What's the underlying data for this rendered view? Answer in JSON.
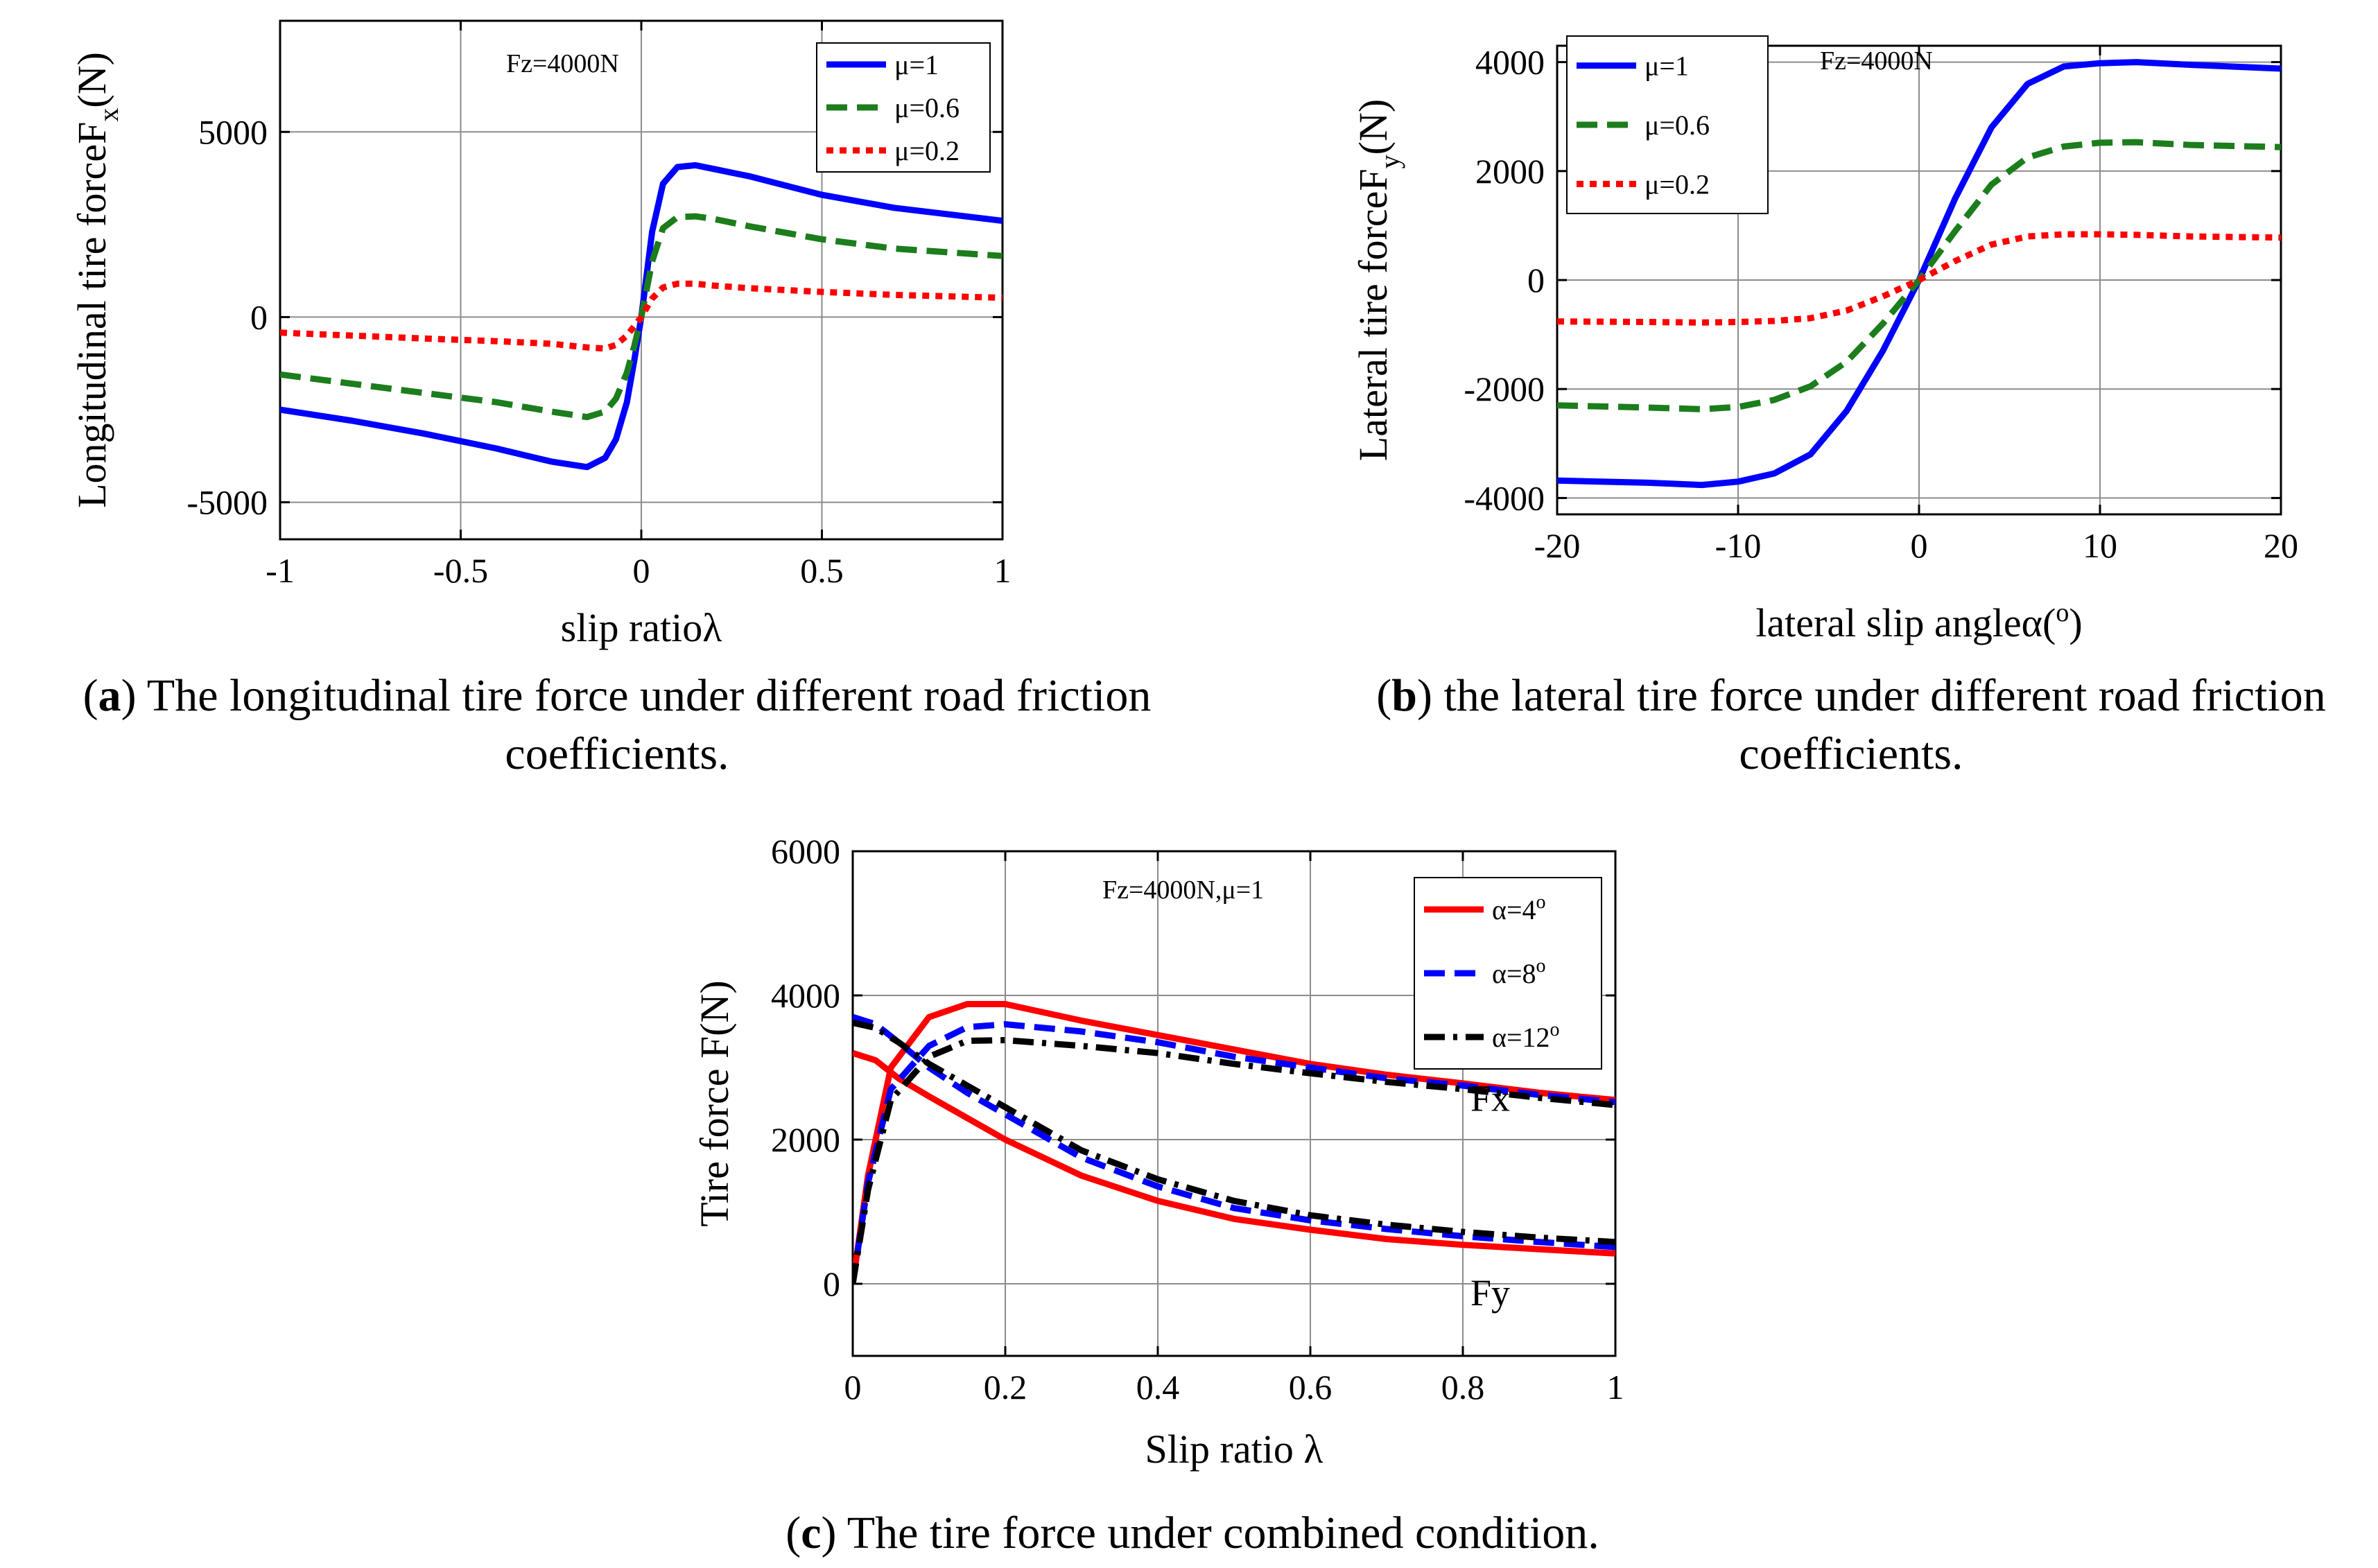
{
  "captions": {
    "a": {
      "letter": "a",
      "text": " The longitudinal tire force under different road friction coefficients."
    },
    "b": {
      "letter": "b",
      "text": " the lateral tire force under different road friction coefficients."
    },
    "c": {
      "letter": "c",
      "text": " The tire force under combined condition."
    }
  },
  "chart_data": [
    {
      "id": "a",
      "type": "line",
      "annotation": "Fz=4000N",
      "xlabel": "slip ratioλ",
      "ylabel_main": "Longitudinal tire forceF",
      "ylabel_sub": "x",
      "ylabel_tail": "(N)",
      "xlim": [
        -1,
        1
      ],
      "ylim": [
        -6000,
        8000
      ],
      "xticks": [
        -1,
        -0.5,
        0,
        0.5,
        1
      ],
      "xtick_labels": [
        "-1",
        "-0.5",
        "0",
        "0.5",
        "1"
      ],
      "yticks": [
        -5000,
        0,
        5000
      ],
      "ytick_labels": [
        "-5000",
        "0",
        "5000"
      ],
      "series": [
        {
          "name": "μ=1",
          "color": "#0000ff",
          "dash": "solid",
          "x": [
            -1,
            -0.8,
            -0.6,
            -0.4,
            -0.25,
            -0.15,
            -0.1,
            -0.07,
            -0.04,
            -0.02,
            0,
            0.03,
            0.06,
            0.1,
            0.15,
            0.2,
            0.3,
            0.5,
            0.7,
            1
          ],
          "y": [
            -2500,
            -2800,
            -3150,
            -3550,
            -3900,
            -4050,
            -3800,
            -3300,
            -2300,
            -1200,
            0,
            2300,
            3600,
            4050,
            4100,
            4000,
            3800,
            3300,
            2950,
            2600
          ]
        },
        {
          "name": "μ=0.6",
          "color": "#1c7d1c",
          "dash": "dash",
          "x": [
            -1,
            -0.8,
            -0.6,
            -0.4,
            -0.25,
            -0.15,
            -0.1,
            -0.07,
            -0.04,
            -0.02,
            0,
            0.03,
            0.06,
            0.1,
            0.15,
            0.2,
            0.3,
            0.5,
            0.7,
            1
          ],
          "y": [
            -1550,
            -1800,
            -2050,
            -2300,
            -2550,
            -2700,
            -2550,
            -2200,
            -1500,
            -800,
            0,
            1500,
            2400,
            2700,
            2720,
            2650,
            2450,
            2100,
            1850,
            1650
          ]
        },
        {
          "name": "μ=0.2",
          "color": "#ff0000",
          "dash": "dot",
          "x": [
            -1,
            -0.8,
            -0.6,
            -0.4,
            -0.25,
            -0.15,
            -0.1,
            -0.07,
            -0.04,
            -0.02,
            0,
            0.03,
            0.06,
            0.1,
            0.15,
            0.2,
            0.3,
            0.5,
            0.7,
            1
          ],
          "y": [
            -420,
            -500,
            -580,
            -650,
            -720,
            -820,
            -850,
            -750,
            -500,
            -250,
            0,
            500,
            800,
            900,
            900,
            850,
            780,
            680,
            600,
            520
          ]
        }
      ]
    },
    {
      "id": "b",
      "type": "line",
      "annotation": "Fz=4000N",
      "xlabel": "lateral slip angleα(",
      "xlabel_sup": "o",
      "xlabel_tail": ")",
      "ylabel_main": "Lateral tire forceF",
      "ylabel_sub": "y",
      "ylabel_tail": "(N)",
      "xlim": [
        -20,
        20
      ],
      "ylim": [
        -4300,
        4300
      ],
      "xticks": [
        -20,
        -10,
        0,
        10,
        20
      ],
      "xtick_labels": [
        "-20",
        "-10",
        "0",
        "10",
        "20"
      ],
      "yticks": [
        -4000,
        -2000,
        0,
        2000,
        4000
      ],
      "ytick_labels": [
        "-4000",
        "-2000",
        "0",
        "2000",
        "4000"
      ],
      "series": [
        {
          "name": "μ=1",
          "color": "#0000ff",
          "dash": "solid",
          "x": [
            -20,
            -15,
            -12,
            -10,
            -8,
            -6,
            -4,
            -2,
            0,
            2,
            4,
            6,
            8,
            10,
            12,
            15,
            20
          ],
          "y": [
            -3680,
            -3720,
            -3760,
            -3700,
            -3550,
            -3200,
            -2400,
            -1300,
            0,
            1500,
            2800,
            3600,
            3920,
            3980,
            4000,
            3950,
            3880
          ]
        },
        {
          "name": "μ=0.6",
          "color": "#1c7d1c",
          "dash": "dash",
          "x": [
            -20,
            -15,
            -12,
            -10,
            -8,
            -6,
            -4,
            -2,
            0,
            2,
            4,
            6,
            8,
            10,
            12,
            15,
            20
          ],
          "y": [
            -2300,
            -2340,
            -2370,
            -2330,
            -2200,
            -1950,
            -1500,
            -800,
            0,
            900,
            1750,
            2250,
            2450,
            2520,
            2530,
            2480,
            2440
          ]
        },
        {
          "name": "μ=0.2",
          "color": "#ff0000",
          "dash": "dot",
          "x": [
            -20,
            -15,
            -12,
            -10,
            -8,
            -6,
            -4,
            -2,
            0,
            2,
            4,
            6,
            8,
            10,
            12,
            15,
            20
          ],
          "y": [
            -760,
            -770,
            -780,
            -770,
            -750,
            -700,
            -560,
            -300,
            0,
            350,
            650,
            800,
            840,
            840,
            830,
            800,
            780
          ]
        }
      ]
    },
    {
      "id": "c",
      "type": "line",
      "annotation": "Fz=4000N,μ=1",
      "xlabel": "Slip ratio λ",
      "ylabel_main": "Tire force F(N)",
      "xlim": [
        0,
        1
      ],
      "ylim": [
        -1000,
        6000
      ],
      "xticks": [
        0,
        0.2,
        0.4,
        0.6,
        0.8,
        1
      ],
      "xtick_labels": [
        "0",
        "0.2",
        "0.4",
        "0.6",
        "0.8",
        "1"
      ],
      "yticks": [
        0,
        2000,
        4000,
        6000
      ],
      "ytick_labels": [
        "0",
        "2000",
        "4000",
        "6000"
      ],
      "curve_labels": [
        {
          "text": "Fx",
          "x": 0.81,
          "y": 2400
        },
        {
          "text": "Fy",
          "x": 0.81,
          "y": -300
        }
      ],
      "series": [
        {
          "name": "α=4",
          "name_sup": "o",
          "color": "#ff0000",
          "dash": "solid",
          "fx_x": [
            0,
            0.02,
            0.05,
            0.1,
            0.15,
            0.2,
            0.3,
            0.4,
            0.5,
            0.6,
            0.7,
            0.8,
            0.9,
            1
          ],
          "fx_y": [
            0,
            1500,
            3000,
            3700,
            3880,
            3880,
            3650,
            3450,
            3250,
            3050,
            2900,
            2780,
            2650,
            2550
          ],
          "fy_x": [
            0,
            0.03,
            0.06,
            0.1,
            0.15,
            0.2,
            0.3,
            0.4,
            0.5,
            0.6,
            0.7,
            0.8,
            0.9,
            1
          ],
          "fy_y": [
            3200,
            3100,
            2850,
            2600,
            2300,
            2000,
            1500,
            1150,
            900,
            750,
            620,
            540,
            480,
            420
          ]
        },
        {
          "name": "α=8",
          "name_sup": "o",
          "color": "#0000ff",
          "dash": "dash",
          "fx_x": [
            0,
            0.02,
            0.05,
            0.1,
            0.15,
            0.2,
            0.3,
            0.4,
            0.5,
            0.6,
            0.7,
            0.8,
            0.9,
            1
          ],
          "fx_y": [
            0,
            1400,
            2700,
            3300,
            3560,
            3600,
            3500,
            3350,
            3150,
            3000,
            2850,
            2750,
            2620,
            2520
          ],
          "fy_x": [
            0,
            0.03,
            0.06,
            0.1,
            0.15,
            0.2,
            0.3,
            0.4,
            0.5,
            0.6,
            0.7,
            0.8,
            0.9,
            1
          ],
          "fy_y": [
            3700,
            3600,
            3350,
            3000,
            2650,
            2350,
            1750,
            1350,
            1050,
            880,
            760,
            660,
            580,
            510
          ]
        },
        {
          "name": "α=12",
          "name_sup": "o",
          "color": "#000000",
          "dash": "dashdot",
          "fx_x": [
            0,
            0.02,
            0.05,
            0.1,
            0.15,
            0.2,
            0.3,
            0.4,
            0.5,
            0.6,
            0.7,
            0.8,
            0.9,
            1
          ],
          "fx_y": [
            0,
            1300,
            2550,
            3150,
            3370,
            3380,
            3300,
            3200,
            3050,
            2920,
            2800,
            2700,
            2580,
            2480
          ],
          "fy_x": [
            0,
            0.03,
            0.06,
            0.1,
            0.15,
            0.2,
            0.3,
            0.4,
            0.5,
            0.6,
            0.7,
            0.8,
            0.9,
            1
          ],
          "fy_y": [
            3620,
            3550,
            3350,
            3050,
            2750,
            2450,
            1850,
            1450,
            1150,
            950,
            820,
            720,
            640,
            580
          ]
        }
      ]
    }
  ]
}
